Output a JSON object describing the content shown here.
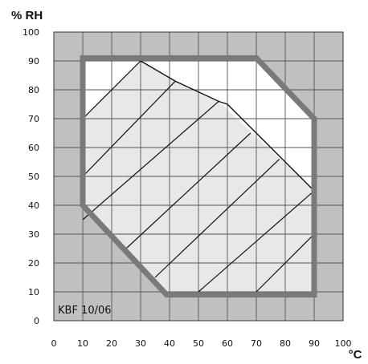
{
  "chart_data": {
    "type": "area",
    "title": "",
    "xlabel": "°C",
    "ylabel": "% RH",
    "annotation": "KBF 10/06",
    "xlim": [
      0,
      100
    ],
    "ylim": [
      0,
      100
    ],
    "x_ticks": [
      "0",
      "10",
      "20",
      "30",
      "40",
      "50",
      "60",
      "70",
      "80",
      "90",
      "100"
    ],
    "y_ticks": [
      "0",
      "10",
      "20",
      "30",
      "40",
      "50",
      "60",
      "70",
      "80",
      "90",
      "100"
    ],
    "grid": true,
    "regions": [
      {
        "name": "outer-boundary",
        "style": "thick-gray-outline",
        "points": [
          [
            10,
            40
          ],
          [
            10,
            91
          ],
          [
            70,
            91
          ],
          [
            90,
            70
          ],
          [
            90,
            9
          ],
          [
            39,
            9
          ]
        ]
      },
      {
        "name": "hatched-region",
        "style": "light-fill-diagonal-hatch",
        "points": [
          [
            10,
            40
          ],
          [
            10,
            70
          ],
          [
            30,
            90
          ],
          [
            42,
            83
          ],
          [
            57,
            76
          ],
          [
            90,
            45
          ],
          [
            90,
            9
          ],
          [
            39,
            9
          ]
        ]
      }
    ],
    "boundary_line": {
      "points": [
        [
          30,
          90
        ],
        [
          42,
          83
        ],
        [
          57,
          76
        ],
        [
          60,
          75
        ],
        [
          90,
          45
        ]
      ]
    },
    "hatch_lines": [
      [
        [
          10,
          70
        ],
        [
          30,
          90
        ]
      ],
      [
        [
          10,
          50
        ],
        [
          42,
          83
        ]
      ],
      [
        [
          10,
          35
        ],
        [
          57,
          76
        ]
      ],
      [
        [
          25,
          25
        ],
        [
          68,
          65
        ]
      ],
      [
        [
          35,
          15
        ],
        [
          78,
          56
        ]
      ],
      [
        [
          50,
          10
        ],
        [
          90,
          45
        ]
      ],
      [
        [
          70,
          10
        ],
        [
          90,
          30
        ]
      ]
    ],
    "colors": {
      "background": "#c0c0c0",
      "region_fill": "#e8e8e8",
      "inner_fill": "#ffffff",
      "boundary_stroke": "#7a7a7a",
      "line": "#111111",
      "grid": "#555555"
    }
  }
}
